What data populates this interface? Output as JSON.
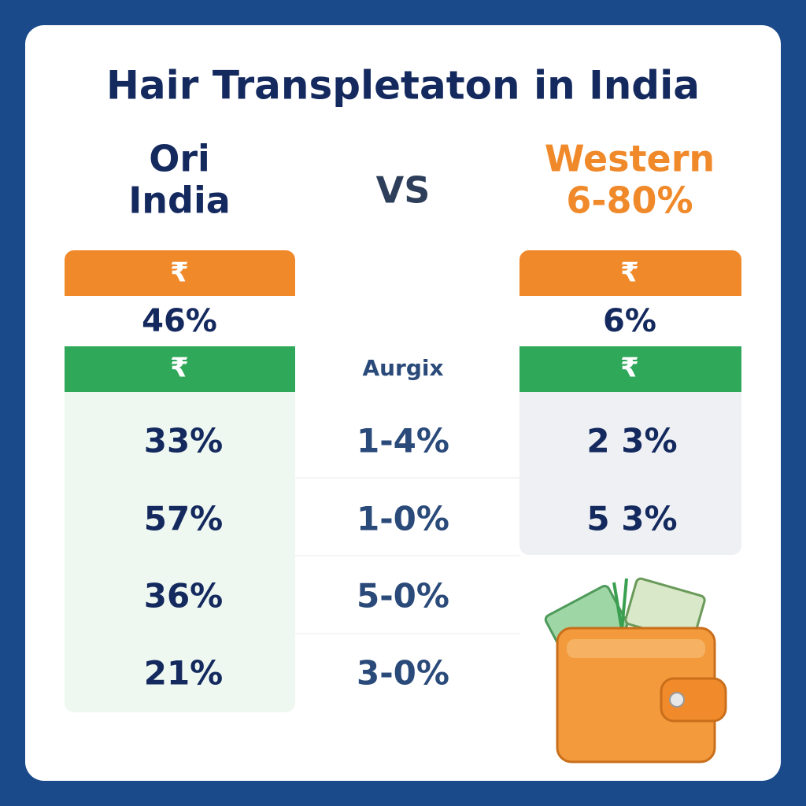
{
  "header": {
    "title": "Hair Transpletaton in India",
    "left": [
      "Ori",
      "India"
    ],
    "vs": "VS",
    "right": [
      "Western",
      "6-80%"
    ]
  },
  "left": {
    "top_badge": "₹",
    "top_value": "46%",
    "band_badge": "₹",
    "rows": [
      "33%",
      "57%",
      "36%",
      "21%"
    ]
  },
  "middle": {
    "label": "Aurgix",
    "rows": [
      "1-4%",
      "1-0%",
      "5-0%",
      "3-0%"
    ]
  },
  "right": {
    "top_badge": "₹",
    "top_value": "6%",
    "band_badge": "₹",
    "rows": [
      "2 3%",
      "5 3%"
    ]
  }
}
